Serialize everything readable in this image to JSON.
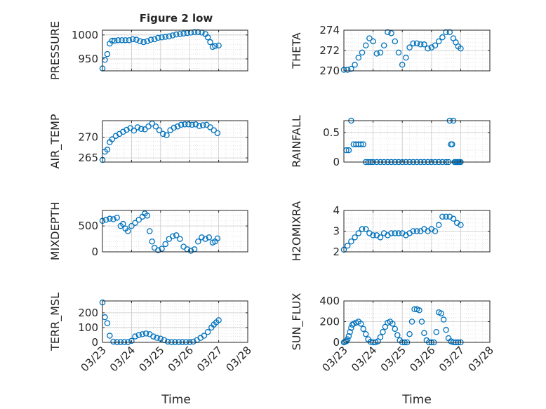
{
  "figure": {
    "title": "Figure 2 low",
    "xlabel": "Time",
    "x_ticks": [
      "03/23",
      "03/24",
      "03/25",
      "03/26",
      "03/27",
      "03/28"
    ],
    "marker_color": "#0072BD"
  },
  "chart_data": [
    {
      "type": "scatter",
      "ylabel": "PRESSURE",
      "ylim": [
        925,
        1010
      ],
      "yticks": [
        950,
        1000
      ],
      "xlim": [
        "03/23",
        "03/28"
      ],
      "grid": true,
      "series": [
        {
          "x": [
            "03/23 00:00",
            "03/23 02:00",
            "03/23 04:00",
            "03/23 06:00",
            "03/23 08:00",
            "03/23 10:00",
            "03/23 13:00",
            "03/23 16:00",
            "03/23 19:00",
            "03/23 22:00",
            "03/24 01:00",
            "03/24 04:00",
            "03/24 07:00",
            "03/24 10:00",
            "03/24 13:00",
            "03/24 16:00",
            "03/24 19:00",
            "03/24 22:00",
            "03/25 01:00",
            "03/25 04:00",
            "03/25 07:00",
            "03/25 10:00",
            "03/25 13:00",
            "03/25 16:00",
            "03/25 19:00",
            "03/25 22:00",
            "03/26 01:00",
            "03/26 04:00",
            "03/26 07:00",
            "03/26 10:00",
            "03/26 13:00",
            "03/26 15:00",
            "03/26 17:00",
            "03/26 19:00",
            "03/26 21:00",
            "03/27 00:00"
          ],
          "y": [
            930,
            948,
            960,
            982,
            988,
            988,
            989,
            989,
            989,
            989,
            991,
            990,
            987,
            985,
            987,
            990,
            991,
            994,
            995,
            996,
            997,
            999,
            1001,
            1002,
            1003,
            1004,
            1005,
            1006,
            1006,
            1005,
            1002,
            995,
            985,
            975,
            977,
            978
          ]
        }
      ]
    },
    {
      "type": "scatter",
      "ylabel": "THETA",
      "ylim": [
        270,
        274
      ],
      "yticks": [
        270,
        272,
        274
      ],
      "xlim": [
        "03/23",
        "03/28"
      ],
      "grid": true,
      "series": [
        {
          "x": [
            "03/23 00:00",
            "03/23 03:00",
            "03/23 06:00",
            "03/23 09:00",
            "03/23 12:00",
            "03/23 15:00",
            "03/23 18:00",
            "03/23 21:00",
            "03/24 00:00",
            "03/24 03:00",
            "03/24 06:00",
            "03/24 09:00",
            "03/24 12:00",
            "03/24 15:00",
            "03/24 18:00",
            "03/24 21:00",
            "03/25 00:00",
            "03/25 03:00",
            "03/25 06:00",
            "03/25 09:00",
            "03/25 12:00",
            "03/25 15:00",
            "03/25 18:00",
            "03/25 21:00",
            "03/26 00:00",
            "03/26 03:00",
            "03/26 06:00",
            "03/26 09:00",
            "03/26 12:00",
            "03/26 15:00",
            "03/26 18:00",
            "03/26 20:00",
            "03/26 22:00",
            "03/27 00:00"
          ],
          "y": [
            270.1,
            270.1,
            270.2,
            270.6,
            271.3,
            271.8,
            272.5,
            273.2,
            272.9,
            271.7,
            271.8,
            272.5,
            273.8,
            273.7,
            272.9,
            271.8,
            270.6,
            271.3,
            272.3,
            272.7,
            272.7,
            272.6,
            272.6,
            272.2,
            272.3,
            272.5,
            272.9,
            273.3,
            273.8,
            273.8,
            273.2,
            272.8,
            272.4,
            272.2
          ]
        }
      ]
    },
    {
      "type": "scatter",
      "ylabel": "AIR_TEMP",
      "ylim": [
        264,
        274
      ],
      "yticks": [
        265,
        270
      ],
      "xlim": [
        "03/23",
        "03/28"
      ],
      "grid": true,
      "series": [
        {
          "x": [
            "03/23 00:00",
            "03/23 02:00",
            "03/23 04:00",
            "03/23 06:00",
            "03/23 08:00",
            "03/23 11:00",
            "03/23 14:00",
            "03/23 17:00",
            "03/23 20:00",
            "03/23 23:00",
            "03/24 02:00",
            "03/24 05:00",
            "03/24 08:00",
            "03/24 11:00",
            "03/24 14:00",
            "03/24 17:00",
            "03/24 20:00",
            "03/24 23:00",
            "03/25 02:00",
            "03/25 05:00",
            "03/25 08:00",
            "03/25 11:00",
            "03/25 14:00",
            "03/25 17:00",
            "03/25 20:00",
            "03/25 23:00",
            "03/26 02:00",
            "03/26 05:00",
            "03/26 08:00",
            "03/26 11:00",
            "03/26 14:00",
            "03/26 17:00",
            "03/26 20:00",
            "03/26 23:00"
          ],
          "y": [
            264.5,
            266.5,
            267.0,
            268.8,
            269.5,
            270.3,
            270.8,
            271.3,
            271.8,
            272.2,
            271.6,
            272.4,
            272.0,
            271.9,
            272.6,
            273.3,
            272.6,
            271.7,
            270.8,
            270.5,
            271.7,
            272.3,
            272.6,
            273.0,
            273.1,
            273.1,
            273.0,
            273.1,
            272.7,
            272.9,
            273.0,
            272.4,
            271.7,
            271.0
          ]
        }
      ]
    },
    {
      "type": "scatter",
      "ylabel": "RAINFALL",
      "ylim": [
        0,
        0.7
      ],
      "yticks": [
        0,
        0.5
      ],
      "xlim": [
        "03/23",
        "03/28"
      ],
      "grid": true,
      "series": [
        {
          "x": [
            "03/23 02:00",
            "03/23 04:00",
            "03/23 06:00",
            "03/23 08:00",
            "03/23 10:00",
            "03/23 12:00",
            "03/23 14:00",
            "03/23 16:00",
            "03/23 18:00",
            "03/23 20:00",
            "03/23 22:00",
            "03/24 00:00",
            "03/24 03:00",
            "03/24 06:00",
            "03/24 09:00",
            "03/24 12:00",
            "03/24 15:00",
            "03/24 18:00",
            "03/24 21:00",
            "03/25 00:00",
            "03/25 03:00",
            "03/25 06:00",
            "03/25 09:00",
            "03/25 12:00",
            "03/25 15:00",
            "03/25 18:00",
            "03/25 21:00",
            "03/26 00:00",
            "03/26 03:00",
            "03/26 06:00",
            "03/26 09:00",
            "03/26 12:00",
            "03/26 14:00",
            "03/26 15:00",
            "03/26 16:00",
            "03/26 17:00",
            "03/26 18:00",
            "03/26 19:00",
            "03/26 20:00",
            "03/26 21:00",
            "03/26 22:00",
            "03/26 23:00",
            "03/27 00:00"
          ],
          "y": [
            0.2,
            0.2,
            0.7,
            0.3,
            0.3,
            0.3,
            0.3,
            0.3,
            0.0,
            0.0,
            0.0,
            0.0,
            0.0,
            0.0,
            0.0,
            0.0,
            0.0,
            0.0,
            0.0,
            0.0,
            0.0,
            0.0,
            0.0,
            0.0,
            0.0,
            0.0,
            0.0,
            0.0,
            0.0,
            0.0,
            0.0,
            0.0,
            0.0,
            0.7,
            0.3,
            0.3,
            0.7,
            0.0,
            0.0,
            0.0,
            0.0,
            0.0,
            0.0
          ]
        }
      ]
    },
    {
      "type": "scatter",
      "ylabel": "MIXDEPTH",
      "ylim": [
        0,
        800
      ],
      "yticks": [
        0,
        500
      ],
      "xlim": [
        "03/23",
        "03/28"
      ],
      "grid": true,
      "series": [
        {
          "x": [
            "03/23 00:00",
            "03/23 03:00",
            "03/23 06:00",
            "03/23 09:00",
            "03/23 12:00",
            "03/23 15:00",
            "03/23 17:00",
            "03/23 19:00",
            "03/23 21:00",
            "03/24 00:00",
            "03/24 03:00",
            "03/24 06:00",
            "03/24 09:00",
            "03/24 11:00",
            "03/24 13:00",
            "03/24 15:00",
            "03/24 17:00",
            "03/24 19:00",
            "03/24 22:00",
            "03/25 01:00",
            "03/25 04:00",
            "03/25 07:00",
            "03/25 10:00",
            "03/25 13:00",
            "03/25 16:00",
            "03/25 19:00",
            "03/25 22:00",
            "03/26 01:00",
            "03/26 04:00",
            "03/26 07:00",
            "03/26 10:00",
            "03/26 13:00",
            "03/26 16:00",
            "03/26 19:00",
            "03/26 21:00",
            "03/26 23:00"
          ],
          "y": [
            600,
            620,
            640,
            630,
            660,
            500,
            540,
            450,
            400,
            500,
            560,
            620,
            680,
            740,
            700,
            400,
            200,
            80,
            30,
            60,
            150,
            250,
            300,
            320,
            250,
            100,
            50,
            20,
            50,
            200,
            280,
            250,
            280,
            180,
            200,
            260
          ]
        }
      ]
    },
    {
      "type": "scatter",
      "ylabel": "H2OMIXRA",
      "ylim": [
        2,
        4
      ],
      "yticks": [
        2,
        3,
        4
      ],
      "xlim": [
        "03/23",
        "03/28"
      ],
      "grid": true,
      "series": [
        {
          "x": [
            "03/23 00:00",
            "03/23 03:00",
            "03/23 06:00",
            "03/23 09:00",
            "03/23 12:00",
            "03/23 15:00",
            "03/23 18:00",
            "03/23 21:00",
            "03/24 00:00",
            "03/24 03:00",
            "03/24 06:00",
            "03/24 09:00",
            "03/24 12:00",
            "03/24 15:00",
            "03/24 18:00",
            "03/24 21:00",
            "03/25 00:00",
            "03/25 03:00",
            "03/25 06:00",
            "03/25 09:00",
            "03/25 12:00",
            "03/25 15:00",
            "03/25 18:00",
            "03/25 21:00",
            "03/26 00:00",
            "03/26 03:00",
            "03/26 06:00",
            "03/26 09:00",
            "03/26 12:00",
            "03/26 15:00",
            "03/26 18:00",
            "03/26 21:00",
            "03/27 00:00"
          ],
          "y": [
            2.1,
            2.3,
            2.5,
            2.7,
            2.9,
            3.1,
            3.1,
            2.9,
            2.8,
            2.8,
            2.7,
            2.9,
            2.8,
            2.9,
            2.9,
            2.9,
            2.9,
            2.8,
            2.9,
            3.0,
            3.0,
            3.0,
            3.1,
            3.0,
            3.1,
            3.0,
            3.3,
            3.7,
            3.7,
            3.7,
            3.6,
            3.4,
            3.3
          ]
        }
      ]
    },
    {
      "type": "scatter",
      "ylabel": "TERR_MSL",
      "ylim": [
        0,
        280
      ],
      "yticks": [
        0,
        100,
        200
      ],
      "xlim": [
        "03/23",
        "03/28"
      ],
      "grid": true,
      "series": [
        {
          "x": [
            "03/23 00:00",
            "03/23 02:00",
            "03/23 04:00",
            "03/23 06:00",
            "03/23 09:00",
            "03/23 12:00",
            "03/23 15:00",
            "03/23 18:00",
            "03/23 21:00",
            "03/24 00:00",
            "03/24 03:00",
            "03/24 06:00",
            "03/24 09:00",
            "03/24 12:00",
            "03/24 15:00",
            "03/24 18:00",
            "03/24 21:00",
            "03/25 00:00",
            "03/25 03:00",
            "03/25 06:00",
            "03/25 09:00",
            "03/25 12:00",
            "03/25 15:00",
            "03/25 18:00",
            "03/25 21:00",
            "03/26 00:00",
            "03/26 03:00",
            "03/26 06:00",
            "03/26 09:00",
            "03/26 12:00",
            "03/26 15:00",
            "03/26 18:00",
            "03/26 20:00",
            "03/26 22:00",
            "03/27 00:00"
          ],
          "y": [
            270,
            170,
            130,
            45,
            5,
            2,
            2,
            2,
            2,
            10,
            40,
            50,
            55,
            60,
            55,
            40,
            30,
            25,
            15,
            5,
            2,
            2,
            2,
            2,
            2,
            2,
            5,
            15,
            30,
            45,
            70,
            100,
            120,
            135,
            150
          ]
        }
      ]
    },
    {
      "type": "scatter",
      "ylabel": "SUN_FLUX",
      "ylim": [
        0,
        400
      ],
      "yticks": [
        0,
        200,
        400
      ],
      "xlim": [
        "03/23",
        "03/28"
      ],
      "grid": true,
      "series": [
        {
          "x": [
            "03/23 00:00",
            "03/23 01:00",
            "03/23 02:00",
            "03/23 03:00",
            "03/23 04:00",
            "03/23 05:00",
            "03/23 06:00",
            "03/23 07:00",
            "03/23 08:00",
            "03/23 10:00",
            "03/23 12:00",
            "03/23 14:00",
            "03/23 16:00",
            "03/23 18:00",
            "03/23 20:00",
            "03/23 22:00",
            "03/24 00:00",
            "03/24 02:00",
            "03/24 04:00",
            "03/24 06:00",
            "03/24 08:00",
            "03/24 10:00",
            "03/24 12:00",
            "03/24 14:00",
            "03/24 16:00",
            "03/24 18:00",
            "03/24 20:00",
            "03/24 22:00",
            "03/25 00:00",
            "03/25 02:00",
            "03/25 04:00",
            "03/25 06:00",
            "03/25 08:00",
            "03/25 10:00",
            "03/25 12:00",
            "03/25 14:00",
            "03/25 16:00",
            "03/25 18:00",
            "03/25 20:00",
            "03/25 22:00",
            "03/26 00:00",
            "03/26 02:00",
            "03/26 04:00",
            "03/26 06:00",
            "03/26 08:00",
            "03/26 10:00",
            "03/26 12:00",
            "03/26 14:00",
            "03/26 16:00",
            "03/26 18:00",
            "03/26 20:00",
            "03/26 22:00",
            "03/27 00:00"
          ],
          "y": [
            0,
            5,
            10,
            30,
            60,
            100,
            140,
            170,
            180,
            190,
            200,
            180,
            130,
            80,
            30,
            5,
            0,
            0,
            10,
            50,
            100,
            150,
            190,
            200,
            180,
            130,
            70,
            20,
            0,
            0,
            0,
            80,
            200,
            320,
            320,
            310,
            200,
            90,
            20,
            0,
            0,
            0,
            100,
            290,
            280,
            220,
            120,
            40,
            10,
            0,
            0,
            0,
            0
          ]
        }
      ]
    }
  ]
}
